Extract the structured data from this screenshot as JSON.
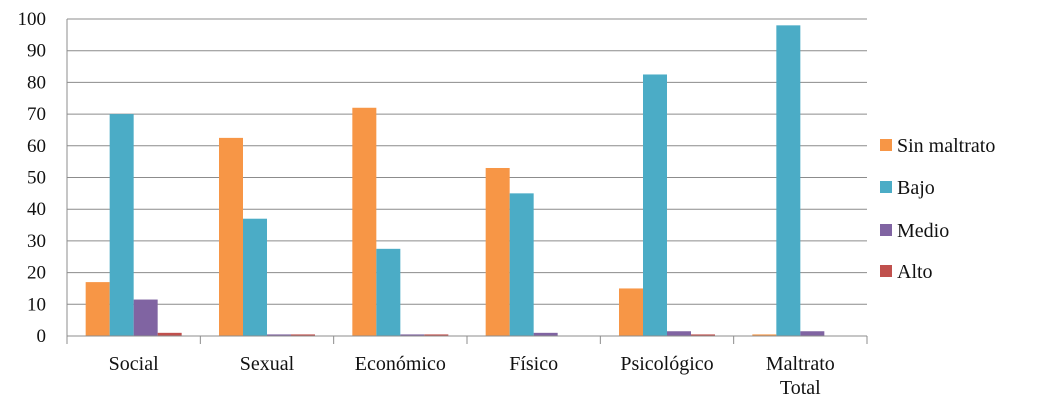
{
  "chart_data": {
    "type": "bar",
    "categories": [
      [
        "Social"
      ],
      [
        "Sexual"
      ],
      [
        "Económico"
      ],
      [
        "Físico"
      ],
      [
        "Psicológico"
      ],
      [
        "Maltrato",
        "Total"
      ]
    ],
    "series": [
      {
        "name": "Sin maltrato",
        "color": "#F79646",
        "values": [
          17,
          62.5,
          72,
          53,
          15,
          0.5
        ]
      },
      {
        "name": "Bajo",
        "color": "#4BACC6",
        "values": [
          70,
          37,
          27.5,
          45,
          82.5,
          98
        ]
      },
      {
        "name": "Medio",
        "color": "#8064A2",
        "values": [
          11.5,
          0.5,
          0.5,
          1,
          1.5,
          1.5
        ]
      },
      {
        "name": "Alto",
        "color": "#C0504D",
        "values": [
          1,
          0.5,
          0.5,
          0,
          0.5,
          0
        ]
      }
    ],
    "yticks": [
      "0",
      "10",
      "20",
      "30",
      "40",
      "50",
      "60",
      "70",
      "80",
      "90",
      "100"
    ],
    "ylim": [
      0,
      100
    ],
    "grid": true,
    "legend_position": "right"
  }
}
